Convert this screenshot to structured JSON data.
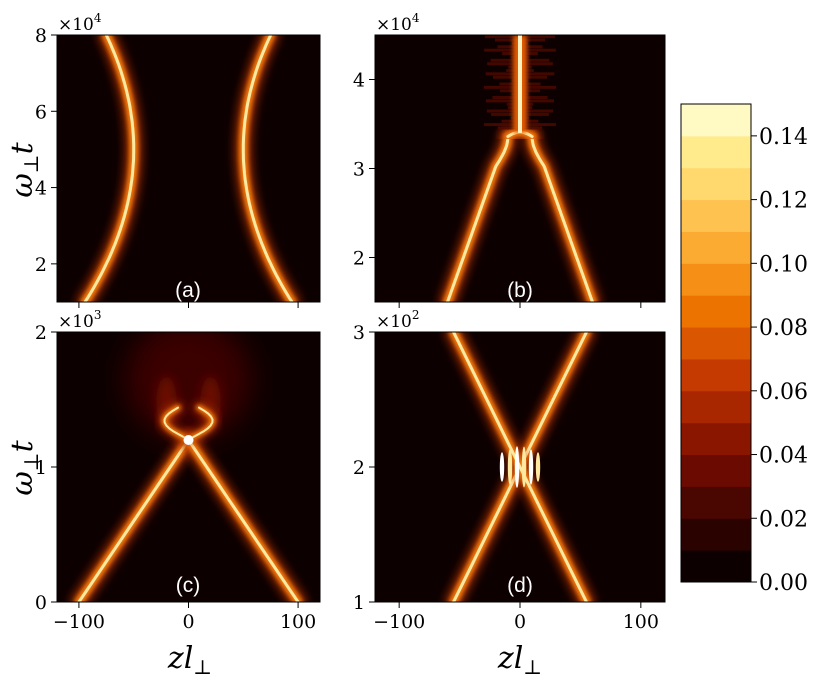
{
  "chart_data": [
    {
      "type": "heatmap",
      "panel": "(a)",
      "xlim": [
        -120,
        120
      ],
      "ylim": [
        10000,
        80000
      ],
      "y_multiplier": "×10",
      "y_multiplier_exp": "4",
      "xticks": [
        -100,
        0,
        100
      ],
      "yticks": [
        {
          "value": 20000,
          "label": "2"
        },
        {
          "value": 40000,
          "label": "4"
        },
        {
          "value": 60000,
          "label": "6"
        },
        {
          "value": 80000,
          "label": "8"
        }
      ],
      "ylabel": "ω⊥t",
      "ylabel_base": "ω",
      "ylabel_sub": "⊥",
      "ylabel_tail": "t",
      "xlabel": "",
      "description": "two separated density tracks, repel and turn back",
      "tracks": [
        {
          "x": [
            -75,
            -62,
            -50,
            -62,
            -75
          ],
          "y": [
            10000,
            30000,
            50000,
            70000,
            80000
          ]
        },
        {
          "x": [
            75,
            62,
            50,
            62,
            75
          ],
          "y": [
            10000,
            30000,
            50000,
            70000,
            80000
          ]
        }
      ]
    },
    {
      "type": "heatmap",
      "panel": "(b)",
      "xlim": [
        -120,
        120
      ],
      "ylim": [
        15000,
        45000
      ],
      "y_multiplier": "×10",
      "y_multiplier_exp": "4",
      "xticks": [
        -100,
        0,
        100
      ],
      "yticks": [
        {
          "value": 20000,
          "label": "2"
        },
        {
          "value": 30000,
          "label": "3"
        },
        {
          "value": 40000,
          "label": "4"
        }
      ],
      "ylabel": "",
      "xlabel": "",
      "description": "two tracks merging into a central bound state near t=3.4e4",
      "tracks": [
        {
          "x": [
            -60,
            -20,
            -10
          ],
          "y": [
            15000,
            32000,
            34000
          ]
        },
        {
          "x": [
            60,
            20,
            10
          ],
          "y": [
            15000,
            32000,
            34000
          ]
        }
      ],
      "merge_y": 34000
    },
    {
      "type": "heatmap",
      "panel": "(c)",
      "xlim": [
        -120,
        120
      ],
      "ylim": [
        0,
        2000
      ],
      "y_multiplier": "×10",
      "y_multiplier_exp": "3",
      "xticks": [
        -100,
        0,
        100
      ],
      "yticks": [
        {
          "value": 0,
          "label": "0"
        },
        {
          "value": 1000,
          "label": "1"
        },
        {
          "value": 2000,
          "label": "2"
        }
      ],
      "ylabel": "ω⊥t",
      "ylabel_base": "ω",
      "ylabel_sub": "⊥",
      "ylabel_tail": "t",
      "xlabel": "zl⊥",
      "xlabel_base": "zl",
      "xlabel_sub": "⊥",
      "description": "collision at t≈1200 producing radiation",
      "tracks": [
        {
          "x": [
            -100,
            0
          ],
          "y": [
            0,
            1200
          ]
        },
        {
          "x": [
            100,
            0
          ],
          "y": [
            0,
            1200
          ]
        }
      ],
      "collision": {
        "x": 0,
        "y": 1200
      }
    },
    {
      "type": "heatmap",
      "panel": "(d)",
      "xlim": [
        -120,
        120
      ],
      "ylim": [
        100,
        300
      ],
      "y_multiplier": "×10",
      "y_multiplier_exp": "2",
      "xticks": [
        -100,
        0,
        100
      ],
      "yticks": [
        {
          "value": 100,
          "label": "1"
        },
        {
          "value": 200,
          "label": "2"
        },
        {
          "value": 300,
          "label": "3"
        }
      ],
      "ylabel": "",
      "xlabel": "zl⊥",
      "xlabel_base": "zl",
      "xlabel_sub": "⊥",
      "description": "tracks cross with interference fringes at t≈200",
      "tracks": [
        {
          "x": [
            -55,
            55
          ],
          "y": [
            100,
            300
          ]
        },
        {
          "x": [
            55,
            -55
          ],
          "y": [
            100,
            300
          ]
        }
      ],
      "crossing": {
        "x": 0,
        "y": 200
      }
    }
  ],
  "colorbar": {
    "min": 0.0,
    "max": 0.15,
    "levels": 15,
    "ticks": [
      "0.00",
      "0.02",
      "0.04",
      "0.06",
      "0.08",
      "0.10",
      "0.12",
      "0.14"
    ],
    "tick_values": [
      0.0,
      0.02,
      0.04,
      0.06,
      0.08,
      0.1,
      0.12,
      0.14
    ],
    "colors": [
      "#0d0000",
      "#2a0300",
      "#4a0600",
      "#6a0a00",
      "#8a1600",
      "#a82600",
      "#c43a00",
      "#da5600",
      "#ec7300",
      "#f68f15",
      "#fbaa32",
      "#fdc250",
      "#ffd86e",
      "#ffeb8c",
      "#fff9c4"
    ]
  }
}
